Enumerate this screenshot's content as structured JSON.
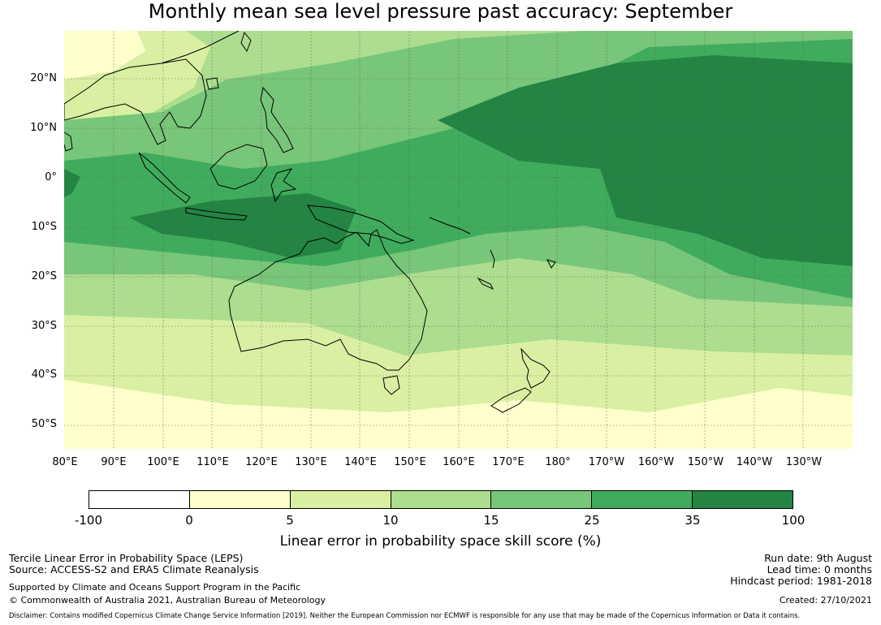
{
  "title": "Monthly mean sea level pressure past accuracy: September",
  "map": {
    "lat_labels": [
      "20°N",
      "10°N",
      "0°",
      "10°S",
      "20°S",
      "30°S",
      "40°S",
      "50°S"
    ],
    "lon_labels": [
      "80°E",
      "90°E",
      "100°E",
      "110°E",
      "120°E",
      "130°E",
      "140°E",
      "150°E",
      "160°E",
      "170°E",
      "180°",
      "170°W",
      "160°W",
      "150°W",
      "140°W",
      "130°W"
    ],
    "lon_range": [
      80,
      240
    ],
    "lat_range": [
      -55,
      30
    ]
  },
  "colorbar": {
    "ticks": [
      "-100",
      "0",
      "5",
      "10",
      "15",
      "25",
      "35",
      "100"
    ],
    "colors": [
      "#ffffff",
      "#ffffcc",
      "#d9f0a3",
      "#addd8e",
      "#78c679",
      "#41ab5d",
      "#238443"
    ],
    "label": "Linear error in probability space skill score (%)"
  },
  "footer": {
    "method": "Tercile Linear Error in Probability Space (LEPS)",
    "source": "Source: ACCESS-S2 and ERA5 Climate Reanalysis",
    "support": "Supported by Climate and Oceans Support Program in the Pacific",
    "copyright": "© Commonwealth of Australia 2021, Australian Bureau of Meteorology",
    "run_date": "Run date: 9th August",
    "lead_time": "Lead time: 0 months",
    "hindcast": "Hindcast period: 1981-2018",
    "created": "Created: 27/10/2021",
    "disclaimer": "Disclaimer: Contains modified Copernicus Climate Change Service Information [2019]. Neither the European Commission nor ECMWF is responsible for any use that may be made of the Copernicus Information or Data it contains."
  }
}
